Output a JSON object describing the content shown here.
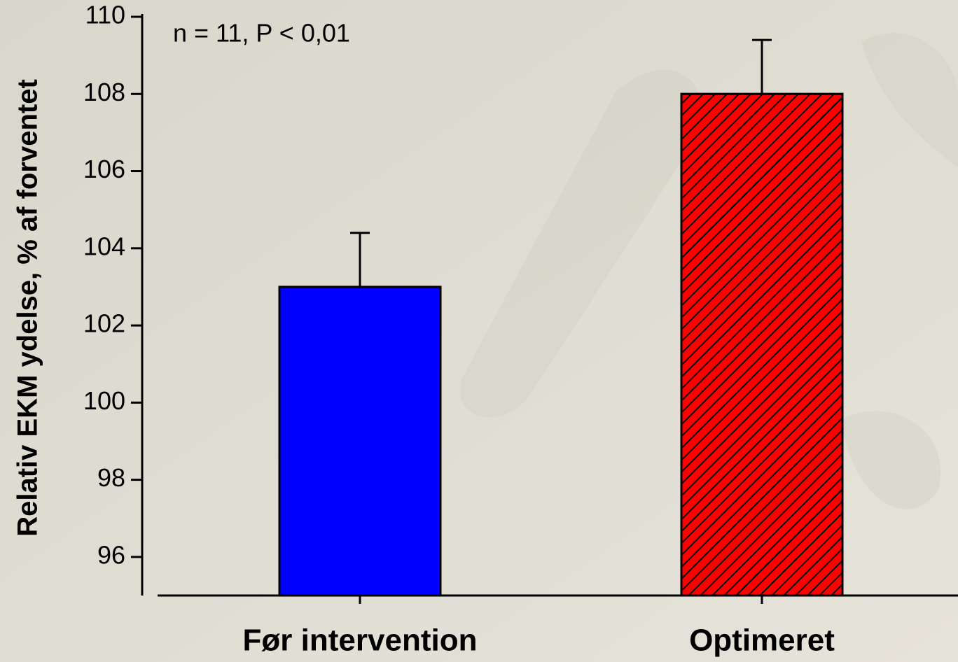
{
  "chart_data": {
    "type": "bar",
    "ylabel": "Relativ EKM ydelse, % af forventet",
    "annotation": "n = 11, P < 0,01",
    "categories": [
      "Før intervention",
      "Optimeret"
    ],
    "values": [
      103,
      108
    ],
    "errors": [
      1.4,
      1.4
    ],
    "colors": [
      "#0000ff",
      "#ff0000"
    ],
    "hatch": [
      false,
      true
    ],
    "ylim": [
      95,
      110
    ],
    "yticks": [
      96,
      98,
      100,
      102,
      104,
      106,
      108,
      110
    ]
  }
}
